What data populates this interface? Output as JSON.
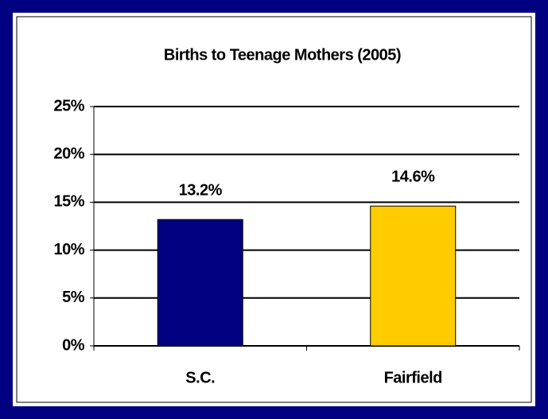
{
  "chart_data": {
    "type": "bar",
    "title": "Births to Teenage Mothers (2005)",
    "categories": [
      "S.C.",
      "Fairfield"
    ],
    "values": [
      13.2,
      14.6
    ],
    "value_labels": [
      "13.2%",
      "14.6%"
    ],
    "colors": [
      "#000080",
      "#ffcc00"
    ],
    "ylim": [
      0,
      25
    ],
    "yticks": [
      {
        "value": 0,
        "label": "0%"
      },
      {
        "value": 5,
        "label": "5%"
      },
      {
        "value": 10,
        "label": "10%"
      },
      {
        "value": 15,
        "label": "15%"
      },
      {
        "value": 20,
        "label": "20%"
      },
      {
        "value": 25,
        "label": "25%"
      }
    ],
    "grid": true
  }
}
